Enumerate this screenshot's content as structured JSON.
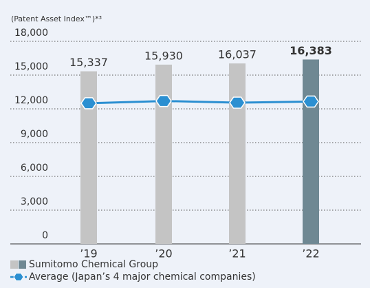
{
  "chart_data": {
    "type": "bar",
    "y_label": "(Patent Asset Index™)*³",
    "categories": [
      "’19",
      "’20",
      "’21",
      "’22"
    ],
    "series": [
      {
        "name": "Sumitomo Chemical Group",
        "type": "bar",
        "colors": [
          "#c4c4c4",
          "#c4c4c4",
          "#c4c4c4",
          "#6f8893"
        ],
        "values": [
          15337,
          15930,
          16037,
          16383
        ],
        "value_labels": [
          "15,337",
          "15,930",
          "16,037",
          "16,383"
        ]
      },
      {
        "name": "Average (Japan’s 4 major chemical companies)",
        "type": "line",
        "color": "#2b8fd1",
        "values": [
          12500,
          12700,
          12550,
          12650
        ]
      }
    ],
    "ylim": [
      0,
      18000
    ],
    "yticks": [
      0,
      {
        "value": 3000,
        "label": "3,000"
      },
      {
        "value": 6000,
        "label": "6,000"
      },
      {
        "value": 9000,
        "label": "9,000"
      },
      {
        "value": 12000,
        "label": "12,000"
      },
      {
        "value": 15000,
        "label": "15,000"
      },
      {
        "value": 18000,
        "label": "18,000"
      }
    ],
    "grid": true
  }
}
